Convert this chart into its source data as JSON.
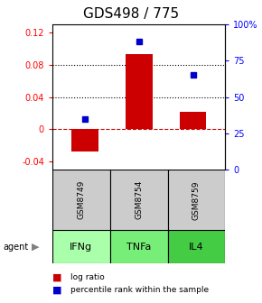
{
  "title": "GDS498 / 775",
  "categories": [
    "IFNg",
    "TNFa",
    "IL4"
  ],
  "gsm_labels": [
    "GSM8749",
    "GSM8754",
    "GSM8759"
  ],
  "log_ratios": [
    -0.028,
    0.093,
    0.022
  ],
  "percentile_ranks": [
    35,
    88,
    65
  ],
  "bar_color": "#cc0000",
  "square_color": "#0000cc",
  "left_ylim": [
    -0.05,
    0.13
  ],
  "right_ylim": [
    0,
    100
  ],
  "left_yticks": [
    -0.04,
    0,
    0.04,
    0.08,
    0.12
  ],
  "right_yticks": [
    0,
    25,
    50,
    75,
    100
  ],
  "right_ytick_labels": [
    "0",
    "25",
    "50",
    "75",
    "100%"
  ],
  "dotted_lines": [
    0.04,
    0.08
  ],
  "dashed_zero": 0,
  "agent_colors": [
    "#aaffaa",
    "#77ee77",
    "#44cc44"
  ],
  "table_bg": "#cccccc",
  "title_fontsize": 11,
  "tick_fontsize": 7,
  "bar_width": 0.5
}
